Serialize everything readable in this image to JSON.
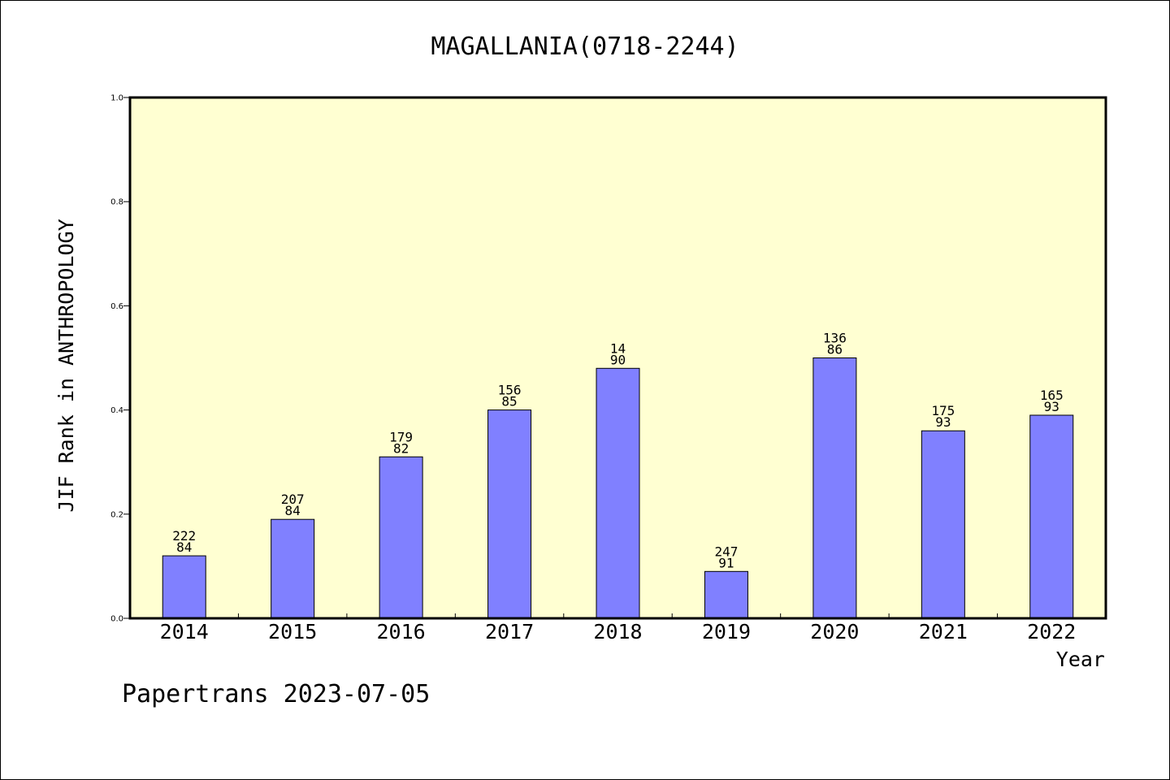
{
  "footer": "Papertrans 2023-07-05",
  "colors": {
    "plot_bg": "#ffffd2",
    "bar_fill": "#8080ff",
    "bar_stroke": "#000000"
  },
  "chart_data": {
    "type": "bar",
    "title": "MAGALLANIA(0718-2244)",
    "xlabel": "Year",
    "ylabel": "JIF Rank in ANTHROPOLOGY",
    "ylim": [
      0,
      1.0
    ],
    "yticks": [
      "0.0",
      "0.2",
      "0.4",
      "0.6",
      "0.8",
      "1.0"
    ],
    "grid": false,
    "categories": [
      "2014",
      "2015",
      "2016",
      "2017",
      "2018",
      "2019",
      "2020",
      "2021",
      "2022"
    ],
    "values": [
      0.12,
      0.19,
      0.31,
      0.4,
      0.48,
      0.09,
      0.5,
      0.36,
      0.39
    ],
    "labels_top": [
      "222",
      "207",
      "179",
      "156",
      "14",
      "247",
      "136",
      "175",
      "165"
    ],
    "labels_bottom": [
      "84",
      "84",
      "82",
      "85",
      "90",
      "91",
      "86",
      "93",
      "93"
    ]
  }
}
